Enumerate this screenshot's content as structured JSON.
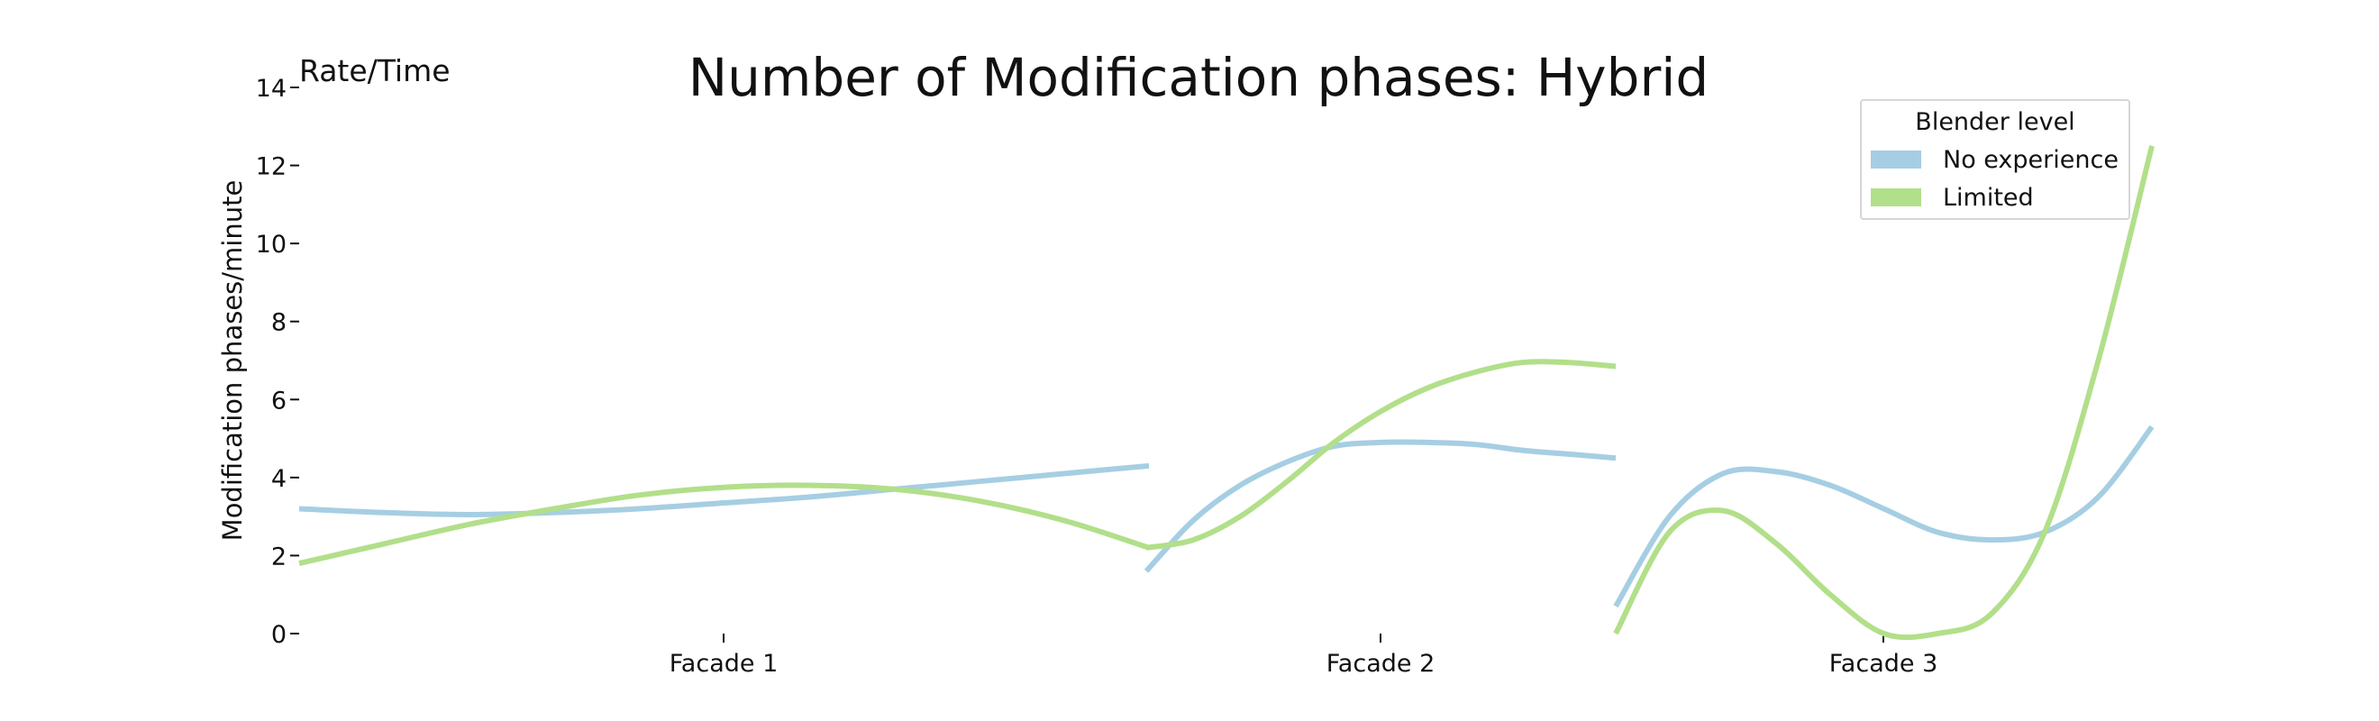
{
  "chart_data": {
    "type": "line",
    "title": "Number of Modification phases: Hybrid",
    "corner_label": "Rate/Time",
    "ylabel": "Modification phases/minute",
    "xlabel": "",
    "ylim": [
      0,
      14
    ],
    "yticks": [
      0,
      2,
      4,
      6,
      8,
      10,
      12,
      14
    ],
    "grid": false,
    "legend": {
      "title": "Blender level",
      "placement": "top-right"
    },
    "categories": [
      "Facade 1",
      "Facade 2",
      "Facade 3"
    ],
    "series": [
      {
        "name": "No experience",
        "color": "#a6cee3",
        "segments": [
          {
            "category": "Facade 1",
            "t": [
              0,
              0.1,
              0.2,
              0.3,
              0.4,
              0.5,
              0.6,
              0.7,
              0.8,
              0.9,
              1.0
            ],
            "y": [
              3.2,
              3.1,
              3.05,
              3.1,
              3.2,
              3.35,
              3.5,
              3.7,
              3.9,
              4.1,
              4.3
            ]
          },
          {
            "category": "Facade 2",
            "t": [
              0,
              0.1,
              0.2,
              0.3,
              0.4,
              0.5,
              0.6,
              0.7,
              0.8,
              0.9,
              1.0
            ],
            "y": [
              1.6,
              2.9,
              3.8,
              4.4,
              4.8,
              4.9,
              4.9,
              4.85,
              4.7,
              4.6,
              4.5
            ]
          },
          {
            "category": "Facade 3",
            "t": [
              0,
              0.1,
              0.2,
              0.3,
              0.4,
              0.5,
              0.6,
              0.7,
              0.8,
              0.9,
              1.0
            ],
            "y": [
              0.7,
              3.0,
              4.1,
              4.15,
              3.8,
              3.2,
              2.6,
              2.4,
              2.6,
              3.5,
              5.3
            ]
          }
        ]
      },
      {
        "name": "Limited",
        "color": "#b2df8a",
        "segments": [
          {
            "category": "Facade 1",
            "t": [
              0,
              0.1,
              0.2,
              0.3,
              0.4,
              0.5,
              0.6,
              0.7,
              0.8,
              0.9,
              1.0
            ],
            "y": [
              1.8,
              2.3,
              2.8,
              3.2,
              3.55,
              3.75,
              3.8,
              3.7,
              3.4,
              2.9,
              2.2
            ]
          },
          {
            "category": "Facade 2",
            "t": [
              0,
              0.1,
              0.2,
              0.3,
              0.4,
              0.5,
              0.6,
              0.7,
              0.8,
              0.9,
              1.0
            ],
            "y": [
              2.2,
              2.4,
              3.0,
              3.9,
              4.9,
              5.7,
              6.3,
              6.7,
              6.95,
              6.95,
              6.85
            ]
          },
          {
            "category": "Facade 3",
            "t": [
              0,
              0.1,
              0.2,
              0.3,
              0.4,
              0.5,
              0.6,
              0.7,
              0.8,
              0.9,
              1.0
            ],
            "y": [
              0.0,
              2.6,
              3.15,
              2.3,
              1.0,
              0.0,
              0.0,
              0.5,
              2.6,
              7.0,
              12.5
            ]
          }
        ]
      }
    ]
  }
}
